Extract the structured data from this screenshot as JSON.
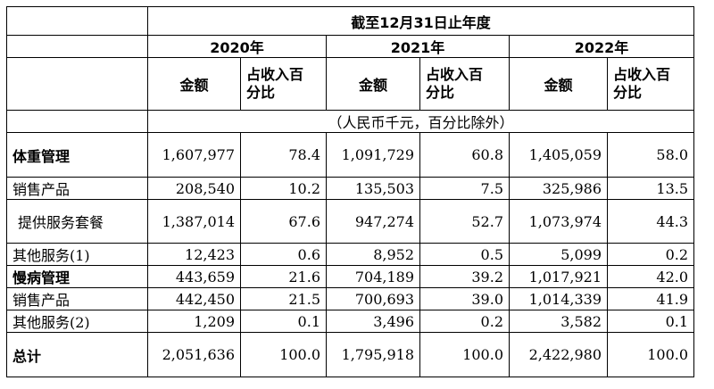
{
  "header": {
    "period": "截至12月31日止年度",
    "years": [
      "2020年",
      "2021年",
      "2022年"
    ],
    "col_amount": "金额",
    "col_pct_line1": "占收入百",
    "col_pct_line2": "分比",
    "unit_note": "（人民币千元，百分比除外）"
  },
  "rows": [
    {
      "label": "体重管理",
      "bold": true,
      "values": [
        "1,607,977",
        "78.4",
        "1,091,729",
        "60.8",
        "1,405,059",
        "58.0"
      ]
    },
    {
      "label": "销售产品",
      "bold": false,
      "values": [
        "208,540",
        "10.2",
        "135,503",
        "7.5",
        "325,986",
        "13.5"
      ]
    },
    {
      "label": "提供服务套餐",
      "bold": false,
      "indent": true,
      "values": [
        "1,387,014",
        "67.6",
        "947,274",
        "52.7",
        "1,073,974",
        "44.3"
      ]
    },
    {
      "label": "其他服务(1)",
      "bold": false,
      "values": [
        "12,423",
        "0.6",
        "8,952",
        "0.5",
        "5,099",
        "0.2"
      ]
    },
    {
      "label": "慢病管理",
      "bold": true,
      "values": [
        "443,659",
        "21.6",
        "704,189",
        "39.2",
        "1,017,921",
        "42.0"
      ]
    },
    {
      "label": "销售产品",
      "bold": false,
      "values": [
        "442,450",
        "21.5",
        "700,693",
        "39.0",
        "1,014,339",
        "41.9"
      ]
    },
    {
      "label": "其他服务(2)",
      "bold": false,
      "values": [
        "1,209",
        "0.1",
        "3,496",
        "0.2",
        "3,582",
        "0.1"
      ]
    },
    {
      "label": "总计",
      "bold": true,
      "values": [
        "2,051,636",
        "100.0",
        "1,795,918",
        "100.0",
        "2,422,980",
        "100.0"
      ]
    }
  ]
}
